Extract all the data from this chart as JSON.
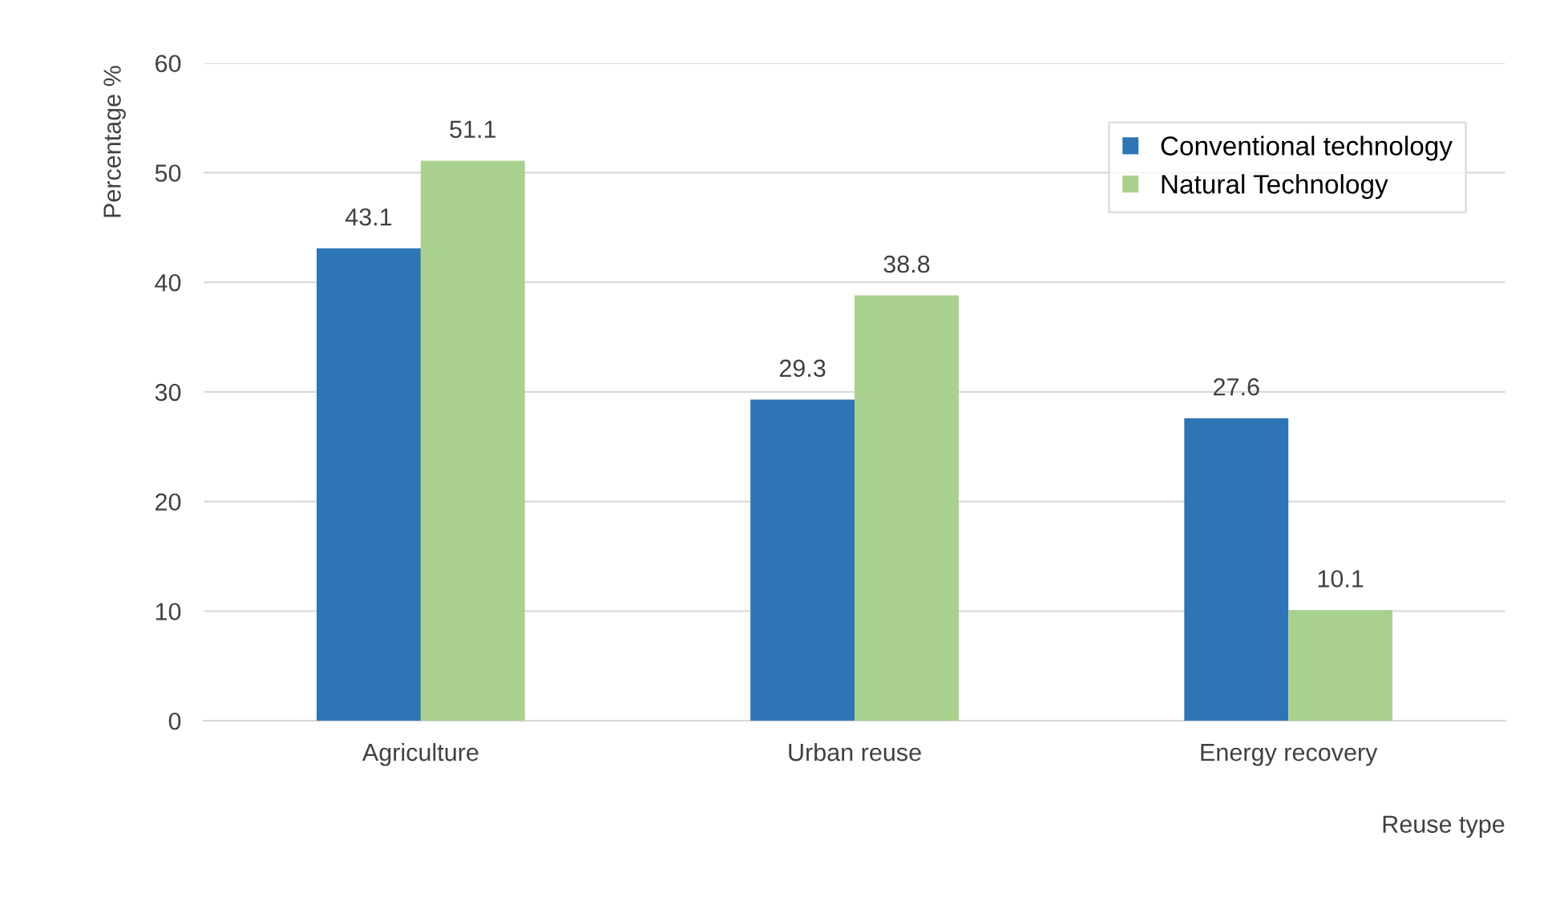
{
  "chart_data": {
    "type": "bar",
    "xlabel": "Reuse type",
    "ylabel": "Percentage %",
    "categories": [
      "Agriculture",
      "Urban reuse",
      "Energy recovery"
    ],
    "series": [
      {
        "name": "Conventional technology",
        "color": "#2e75b6",
        "values": [
          43.1,
          29.3,
          27.6
        ]
      },
      {
        "name": "Natural Technology",
        "color": "#a9d18e",
        "values": [
          51.1,
          38.8,
          10.1
        ]
      }
    ],
    "ylim": [
      0,
      60
    ],
    "yticks": [
      0,
      10,
      20,
      30,
      40,
      50,
      60
    ],
    "grid": "y",
    "legend": "top right",
    "data_labels": true
  }
}
